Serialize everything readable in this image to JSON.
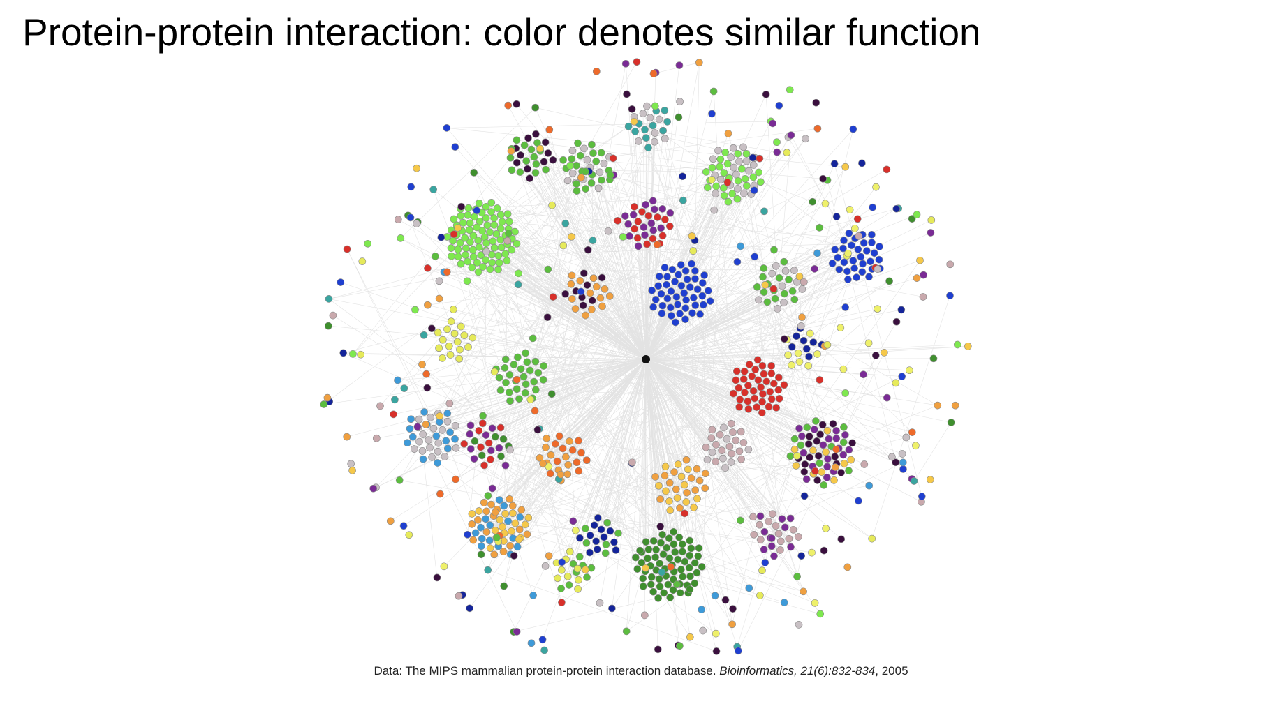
{
  "slide": {
    "title": "Protein-protein interaction: color denotes similar function",
    "caption": {
      "prefix": "Data: The MIPS mammalian protein-protein interaction database. ",
      "journal": "Bioinformatics, 21(6):832-834",
      "suffix": ", 2005"
    }
  },
  "network": {
    "hub_color": "#111111",
    "edge_color": "#9a9a9a",
    "node_outline": "#8a8a8a",
    "function_colors": {
      "bright-green": "#7ee84f",
      "green": "#5cbd3f",
      "dark-green": "#3f8f2e",
      "yellow": "#e6ea5a",
      "pale-yellow": "#eef06a",
      "gold": "#f5c84a",
      "orange": "#f0a040",
      "dark-orange": "#ee6a2a",
      "red": "#d8302a",
      "blue": "#1f3fd0",
      "dark-blue": "#14249a",
      "sky-blue": "#3e9ad8",
      "teal": "#3aa5a0",
      "purple": "#7a2b95",
      "dark-purple": "#3a0f3e",
      "grey": "#c8c0c4",
      "pink-grey": "#c9a9ad"
    }
  }
}
